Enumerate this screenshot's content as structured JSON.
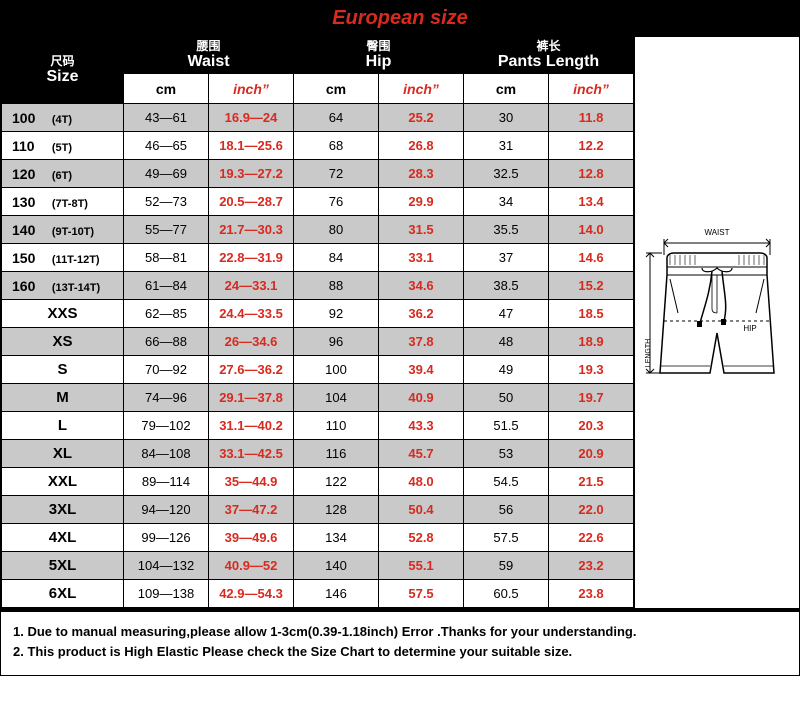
{
  "title": "European size",
  "headers": {
    "size": {
      "cn": "尺码",
      "en": "Size"
    },
    "waist": {
      "cn": "腰围",
      "en": "Waist"
    },
    "hip": {
      "cn": "臀围",
      "en": "Hip"
    },
    "length": {
      "cn": "裤长",
      "en": "Pants Length"
    }
  },
  "subheaders": {
    "cm": "cm",
    "inch": "inch”"
  },
  "diagram_labels": {
    "waist": "WAIST",
    "hip": "HIP",
    "length": "LENGTH"
  },
  "colors": {
    "accent_red": "#d82a1f",
    "row_alt": "#c9c9c9",
    "header_bg": "#000000",
    "header_fg": "#ffffff",
    "border": "#000000",
    "bg": "#ffffff"
  },
  "rows": [
    {
      "size1": "100",
      "size2": "(4T)",
      "waist_cm": "43—61",
      "waist_in": "16.9—24",
      "hip_cm": "64",
      "hip_in": "25.2",
      "len_cm": "30",
      "len_in": "11.8"
    },
    {
      "size1": "110",
      "size2": "(5T)",
      "waist_cm": "46—65",
      "waist_in": "18.1—25.6",
      "hip_cm": "68",
      "hip_in": "26.8",
      "len_cm": "31",
      "len_in": "12.2"
    },
    {
      "size1": "120",
      "size2": "(6T)",
      "waist_cm": "49—69",
      "waist_in": "19.3—27.2",
      "hip_cm": "72",
      "hip_in": "28.3",
      "len_cm": "32.5",
      "len_in": "12.8"
    },
    {
      "size1": "130",
      "size2": "(7T-8T)",
      "waist_cm": "52—73",
      "waist_in": "20.5—28.7",
      "hip_cm": "76",
      "hip_in": "29.9",
      "len_cm": "34",
      "len_in": "13.4"
    },
    {
      "size1": "140",
      "size2": "(9T-10T)",
      "waist_cm": "55—77",
      "waist_in": "21.7—30.3",
      "hip_cm": "80",
      "hip_in": "31.5",
      "len_cm": "35.5",
      "len_in": "14.0"
    },
    {
      "size1": "150",
      "size2": "(11T-12T)",
      "waist_cm": "58—81",
      "waist_in": "22.8—31.9",
      "hip_cm": "84",
      "hip_in": "33.1",
      "len_cm": "37",
      "len_in": "14.6"
    },
    {
      "size1": "160",
      "size2": "(13T-14T)",
      "waist_cm": "61—84",
      "waist_in": "24—33.1",
      "hip_cm": "88",
      "hip_in": "34.6",
      "len_cm": "38.5",
      "len_in": "15.2"
    },
    {
      "size1": "XXS",
      "size2": "",
      "waist_cm": "62—85",
      "waist_in": "24.4—33.5",
      "hip_cm": "92",
      "hip_in": "36.2",
      "len_cm": "47",
      "len_in": "18.5"
    },
    {
      "size1": "XS",
      "size2": "",
      "waist_cm": "66—88",
      "waist_in": "26—34.6",
      "hip_cm": "96",
      "hip_in": "37.8",
      "len_cm": "48",
      "len_in": "18.9"
    },
    {
      "size1": "S",
      "size2": "",
      "waist_cm": "70—92",
      "waist_in": "27.6—36.2",
      "hip_cm": "100",
      "hip_in": "39.4",
      "len_cm": "49",
      "len_in": "19.3"
    },
    {
      "size1": "M",
      "size2": "",
      "waist_cm": "74—96",
      "waist_in": "29.1—37.8",
      "hip_cm": "104",
      "hip_in": "40.9",
      "len_cm": "50",
      "len_in": "19.7"
    },
    {
      "size1": "L",
      "size2": "",
      "waist_cm": "79—102",
      "waist_in": "31.1—40.2",
      "hip_cm": "110",
      "hip_in": "43.3",
      "len_cm": "51.5",
      "len_in": "20.3"
    },
    {
      "size1": "XL",
      "size2": "",
      "waist_cm": "84—108",
      "waist_in": "33.1—42.5",
      "hip_cm": "116",
      "hip_in": "45.7",
      "len_cm": "53",
      "len_in": "20.9"
    },
    {
      "size1": "XXL",
      "size2": "",
      "waist_cm": "89—114",
      "waist_in": "35—44.9",
      "hip_cm": "122",
      "hip_in": "48.0",
      "len_cm": "54.5",
      "len_in": "21.5"
    },
    {
      "size1": "3XL",
      "size2": "",
      "waist_cm": "94—120",
      "waist_in": "37—47.2",
      "hip_cm": "128",
      "hip_in": "50.4",
      "len_cm": "56",
      "len_in": "22.0"
    },
    {
      "size1": "4XL",
      "size2": "",
      "waist_cm": "99—126",
      "waist_in": "39—49.6",
      "hip_cm": "134",
      "hip_in": "52.8",
      "len_cm": "57.5",
      "len_in": "22.6"
    },
    {
      "size1": "5XL",
      "size2": "",
      "waist_cm": "104—132",
      "waist_in": "40.9—52",
      "hip_cm": "140",
      "hip_in": "55.1",
      "len_cm": "59",
      "len_in": "23.2"
    },
    {
      "size1": "6XL",
      "size2": "",
      "waist_cm": "109—138",
      "waist_in": "42.9—54.3",
      "hip_cm": "146",
      "hip_in": "57.5",
      "len_cm": "60.5",
      "len_in": "23.8"
    }
  ],
  "notes": {
    "n1": "1. Due to manual measuring,please allow 1-3cm(0.39-1.18inch) Error .Thanks for your understanding.",
    "n2": "2. This product is High Elastic Please check the Size Chart to determine your suitable size."
  }
}
